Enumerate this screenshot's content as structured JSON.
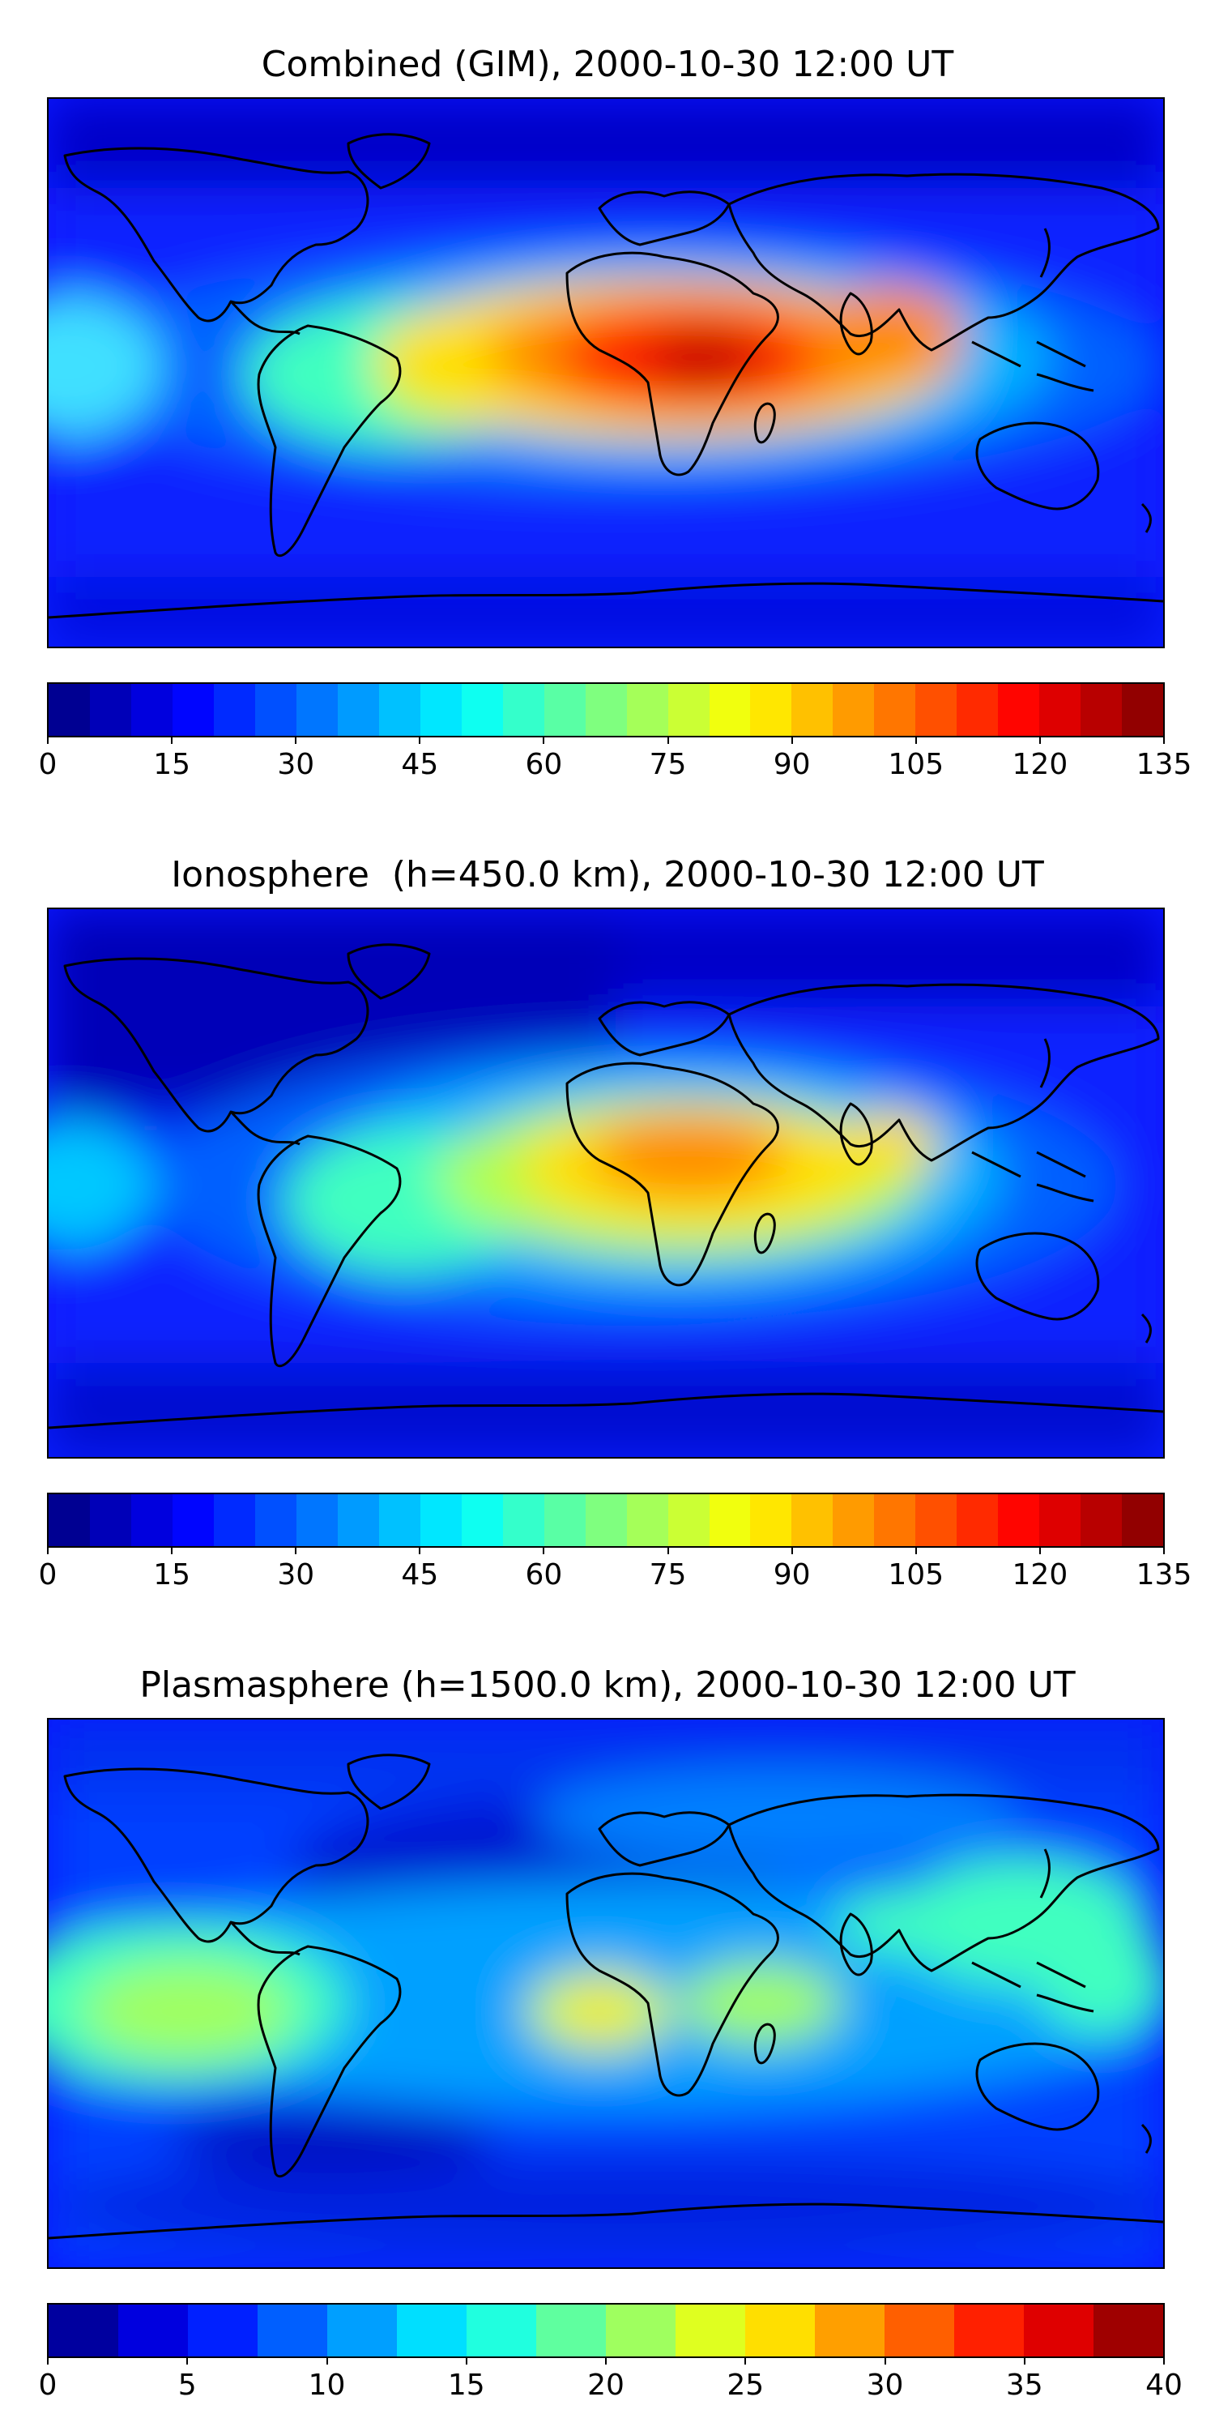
{
  "panels": [
    {
      "title": "Combined (GIM), 2000-10-30 12:00 UT",
      "colorbar": {
        "min": 0,
        "max": 135,
        "levels": 27,
        "ticks": [
          "0",
          "15",
          "30",
          "45",
          "60",
          "75",
          "90",
          "105",
          "120",
          "135"
        ]
      },
      "features": [
        {
          "name": "equatorial-anomaly-peak",
          "lon": 30,
          "lat": 5,
          "value": 128
        },
        {
          "name": "south-asia-secondary-peak",
          "lon": 75,
          "lat": 15,
          "value": 100
        },
        {
          "name": "south-america-lobe",
          "lon": -50,
          "lat": 0,
          "value": 85
        },
        {
          "name": "pacific-lobe",
          "lon": -175,
          "lat": 0,
          "value": 55
        }
      ]
    },
    {
      "title": "Ionosphere  (h=450.0 km), 2000-10-30 12:00 UT",
      "colorbar": {
        "min": 0,
        "max": 135,
        "levels": 27,
        "ticks": [
          "0",
          "15",
          "30",
          "45",
          "60",
          "75",
          "90",
          "105",
          "120",
          "135"
        ]
      },
      "features": [
        {
          "name": "equatorial-anomaly-peak",
          "lon": 20,
          "lat": 15,
          "value": 100
        },
        {
          "name": "south-america-lobe",
          "lon": -60,
          "lat": -5,
          "value": 65
        },
        {
          "name": "asia-lobe",
          "lon": 75,
          "lat": 12,
          "value": 85
        }
      ]
    },
    {
      "title": "Plasmasphere (h=1500.0 km), 2000-10-30 12:00 UT",
      "colorbar": {
        "min": 0,
        "max": 40,
        "levels": 16,
        "ticks": [
          "0",
          "5",
          "10",
          "15",
          "20",
          "25",
          "30",
          "35",
          "40"
        ]
      },
      "features": [
        {
          "name": "atlantic-peak",
          "lon": -15,
          "lat": -5,
          "value": 27
        },
        {
          "name": "pacific-lobe",
          "lon": -155,
          "lat": -5,
          "value": 22
        },
        {
          "name": "africa-lobe",
          "lon": 35,
          "lat": -5,
          "value": 23
        },
        {
          "name": "west-pacific-lobe",
          "lon": 150,
          "lat": 5,
          "value": 18
        }
      ]
    }
  ],
  "colors": {
    "jet_anchors": [
      "#00007f",
      "#0000ff",
      "#007fff",
      "#00ffff",
      "#7fff7f",
      "#ffff00",
      "#ff7f00",
      "#ff0000",
      "#7f0000"
    ],
    "coastline": "#000000"
  }
}
